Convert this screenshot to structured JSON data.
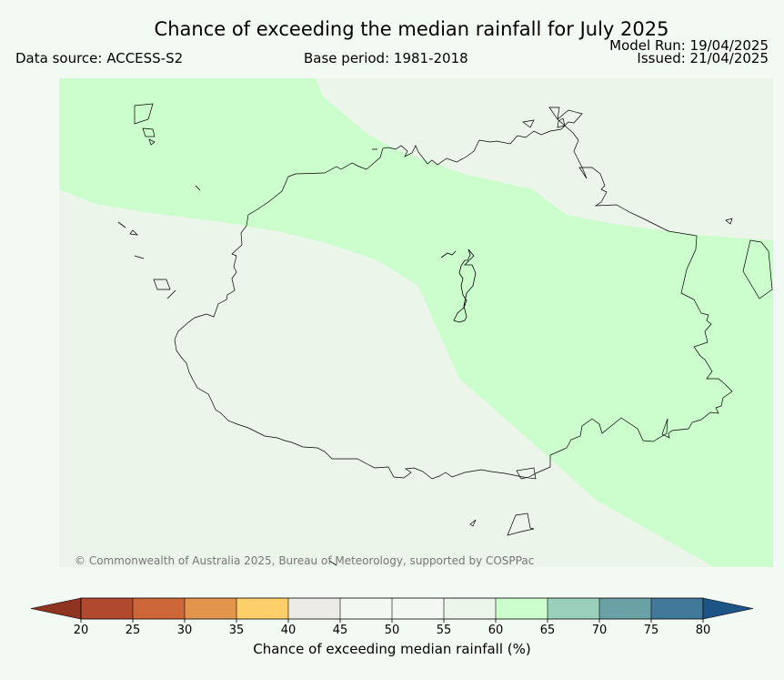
{
  "title": "Chance of exceeding the median rainfall for July 2025",
  "data_source": "Data source: ACCESS-S2",
  "base_period": "Base period: 1981-2018",
  "model_run": "Model Run: 19/04/2025",
  "issued": "Issued: 21/04/2025",
  "credit": "© Commonwealth of Australia 2025, Bureau of Meteorology, supported by COSPPac",
  "colorbar": {
    "label": "Chance of exceeding median rainfall (%)",
    "ticks": [
      "20",
      "25",
      "30",
      "35",
      "40",
      "45",
      "50",
      "55",
      "60",
      "65",
      "70",
      "75",
      "80"
    ],
    "colors": [
      "#b0492e",
      "#cd6739",
      "#e3964b",
      "#fece69",
      "#ecebe6",
      "#f4f8f2",
      "#f4f8f2",
      "#ebf5ea",
      "#ccfdcc",
      "#9ad0bb",
      "#6aa1a5",
      "#42799a"
    ],
    "under_color": "#8e3420",
    "over_color": "#1e5385"
  },
  "map": {
    "region_colors": {
      "55-60": "#ebf5ea",
      "60-65": "#ccfdcc"
    }
  }
}
